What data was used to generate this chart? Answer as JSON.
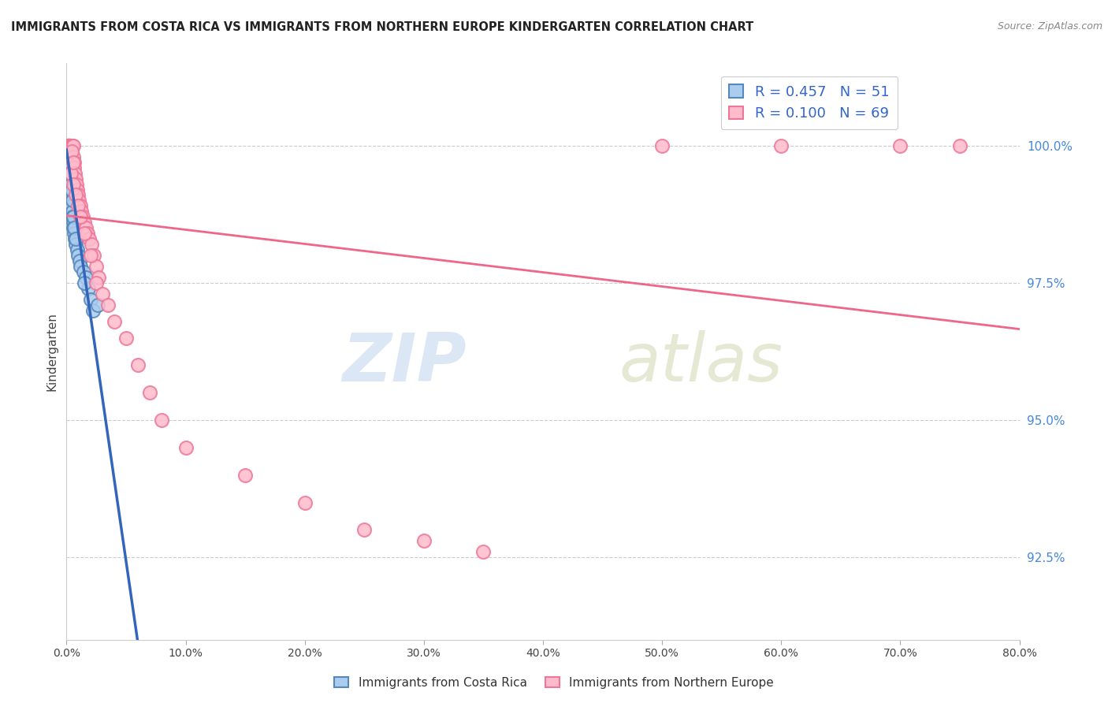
{
  "title": "IMMIGRANTS FROM COSTA RICA VS IMMIGRANTS FROM NORTHERN EUROPE KINDERGARTEN CORRELATION CHART",
  "source": "Source: ZipAtlas.com",
  "ylabel": "Kindergarten",
  "series1_label": "Immigrants from Costa Rica",
  "series2_label": "Immigrants from Northern Europe",
  "series1_R": "0.457",
  "series1_N": "51",
  "series2_R": "0.100",
  "series2_N": "69",
  "series1_face_color": "#AACCEE",
  "series1_edge_color": "#5588BB",
  "series2_face_color": "#FFBBCC",
  "series2_edge_color": "#EE7799",
  "series1_line_color": "#3366BB",
  "series2_line_color": "#EE6688",
  "legend_text_color": "#3366CC",
  "ytick_color": "#4488DD",
  "title_color": "#222222",
  "source_color": "#888888",
  "xmin": 0.0,
  "xmax": 80.0,
  "ymin": 91.0,
  "ymax": 101.5,
  "y_ticks": [
    92.5,
    95.0,
    97.5,
    100.0
  ],
  "x_ticks": [
    0.0,
    10.0,
    20.0,
    30.0,
    40.0,
    50.0,
    60.0,
    70.0,
    80.0
  ],
  "cr_x": [
    0.05,
    0.08,
    0.1,
    0.12,
    0.13,
    0.14,
    0.15,
    0.16,
    0.17,
    0.18,
    0.19,
    0.2,
    0.21,
    0.22,
    0.23,
    0.24,
    0.25,
    0.26,
    0.28,
    0.3,
    0.32,
    0.34,
    0.36,
    0.38,
    0.4,
    0.42,
    0.45,
    0.48,
    0.5,
    0.55,
    0.6,
    0.65,
    0.7,
    0.8,
    0.9,
    1.0,
    1.1,
    1.2,
    1.4,
    1.6,
    1.8,
    2.0,
    2.2,
    0.52,
    0.56,
    0.62,
    0.75,
    1.5,
    2.6,
    0.3,
    0.44
  ],
  "cr_y": [
    100.0,
    100.0,
    100.0,
    100.0,
    100.0,
    100.0,
    100.0,
    100.0,
    100.0,
    100.0,
    100.0,
    100.0,
    100.0,
    100.0,
    100.0,
    100.0,
    100.0,
    99.8,
    99.7,
    99.6,
    99.5,
    99.4,
    99.3,
    99.2,
    99.1,
    99.0,
    98.9,
    98.8,
    98.7,
    98.6,
    98.5,
    98.4,
    98.3,
    98.2,
    98.1,
    98.0,
    97.9,
    97.8,
    97.7,
    97.6,
    97.4,
    97.2,
    97.0,
    99.0,
    98.7,
    98.5,
    98.3,
    97.5,
    97.1,
    99.5,
    99.2
  ],
  "ne_x": [
    0.05,
    0.07,
    0.09,
    0.11,
    0.13,
    0.15,
    0.17,
    0.19,
    0.21,
    0.23,
    0.25,
    0.27,
    0.29,
    0.31,
    0.33,
    0.35,
    0.38,
    0.41,
    0.44,
    0.47,
    0.5,
    0.54,
    0.58,
    0.62,
    0.67,
    0.72,
    0.78,
    0.84,
    0.9,
    0.97,
    1.05,
    1.14,
    1.24,
    1.35,
    1.47,
    1.6,
    1.75,
    1.9,
    2.08,
    2.27,
    2.48,
    2.71,
    0.4,
    0.6,
    0.8,
    1.0,
    1.2,
    1.5,
    2.0,
    2.5,
    3.0,
    3.5,
    4.0,
    5.0,
    6.0,
    7.0,
    8.0,
    10.0,
    15.0,
    20.0,
    25.0,
    30.0,
    35.0,
    50.0,
    60.0,
    70.0,
    75.0,
    0.45,
    0.55
  ],
  "ne_y": [
    100.0,
    100.0,
    100.0,
    100.0,
    100.0,
    100.0,
    100.0,
    100.0,
    100.0,
    100.0,
    100.0,
    100.0,
    100.0,
    100.0,
    100.0,
    100.0,
    100.0,
    100.0,
    100.0,
    100.0,
    100.0,
    100.0,
    99.8,
    99.7,
    99.6,
    99.5,
    99.4,
    99.3,
    99.2,
    99.1,
    99.0,
    98.9,
    98.8,
    98.7,
    98.6,
    98.5,
    98.4,
    98.3,
    98.2,
    98.0,
    97.8,
    97.6,
    99.5,
    99.3,
    99.1,
    98.9,
    98.7,
    98.4,
    98.0,
    97.5,
    97.3,
    97.1,
    96.8,
    96.5,
    96.0,
    95.5,
    95.0,
    94.5,
    94.0,
    93.5,
    93.0,
    92.8,
    92.6,
    100.0,
    100.0,
    100.0,
    100.0,
    99.9,
    99.7
  ],
  "watermark_zip_color": "#C5D8F0",
  "watermark_atlas_color": "#D0D8B0"
}
